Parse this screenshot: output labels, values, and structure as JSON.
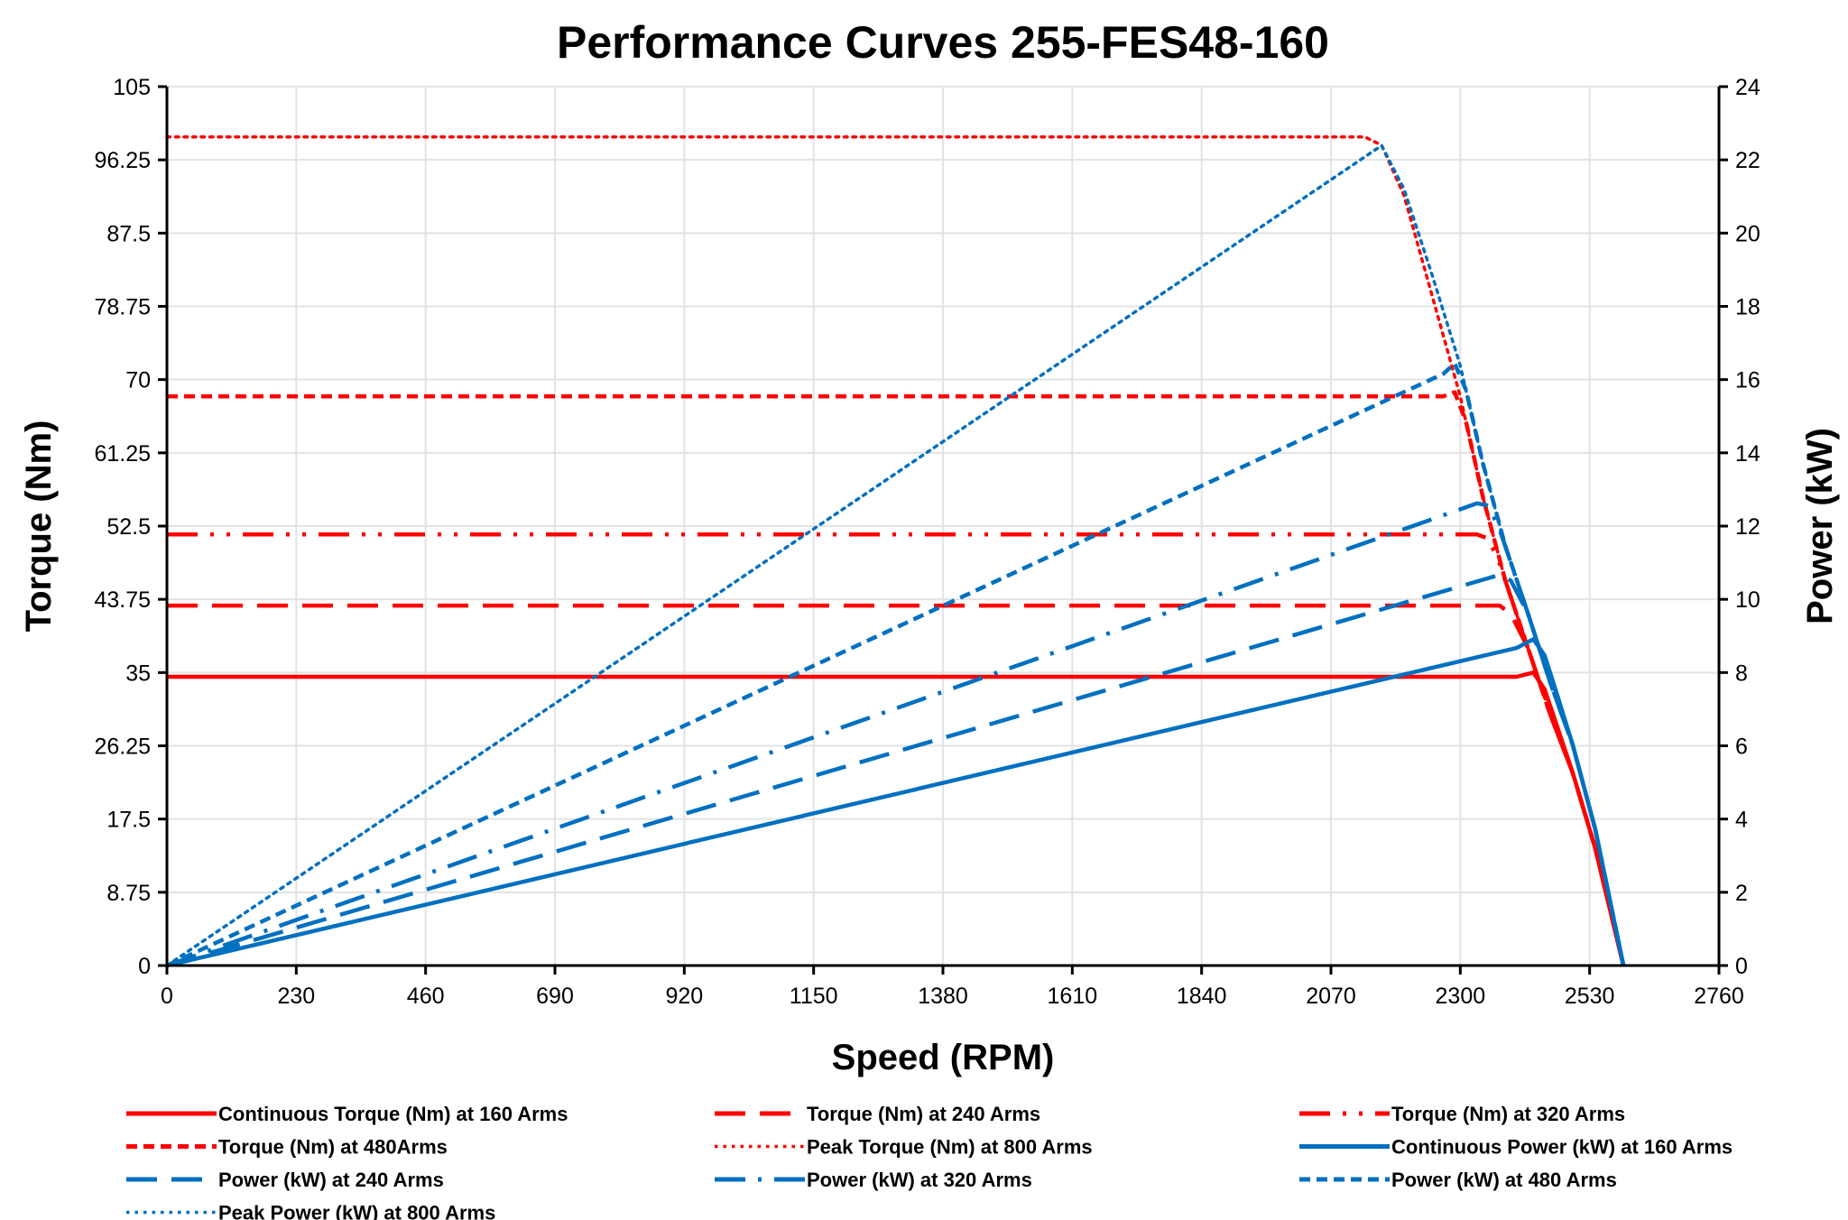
{
  "chart_data": {
    "type": "line",
    "title": "Performance Curves 255-FES48-160",
    "xlabel": "Speed (RPM)",
    "ylabel": "Torque (Nm)",
    "y2label": "Power (kW)",
    "xlim": [
      0,
      2760
    ],
    "ylim": [
      0,
      105
    ],
    "y2lim": [
      0,
      24
    ],
    "xticks": [
      "0",
      "230",
      "460",
      "690",
      "920",
      "1150",
      "1380",
      "1610",
      "1840",
      "2070",
      "2300",
      "2530",
      "2760"
    ],
    "yticks": [
      "0",
      "8.75",
      "17.5",
      "26.25",
      "35",
      "43.75",
      "52.5",
      "61.25",
      "70",
      "78.75",
      "87.5",
      "96.25",
      "105"
    ],
    "y2ticks": [
      "0",
      "2",
      "4",
      "6",
      "8",
      "10",
      "12",
      "14",
      "16",
      "18",
      "20",
      "22",
      "24"
    ],
    "grid": true,
    "legend_position": "bottom",
    "colors": {
      "torque": "#ff0000",
      "power": "#0070c0"
    },
    "series": [
      {
        "name": "Continuous Torque (Nm) at 160 Arms",
        "axis": "left",
        "color": "#ff0000",
        "style": "solid",
        "points": [
          [
            0,
            34.5
          ],
          [
            2400,
            34.5
          ],
          [
            2430,
            35
          ],
          [
            2450,
            33
          ],
          [
            2470,
            29
          ],
          [
            2500,
            23
          ],
          [
            2540,
            14
          ],
          [
            2590,
            0
          ]
        ]
      },
      {
        "name": "Torque (Nm) at 240 Arms",
        "axis": "left",
        "color": "#ff0000",
        "style": "long-dash",
        "points": [
          [
            0,
            43
          ],
          [
            2370,
            43
          ],
          [
            2390,
            42
          ],
          [
            2420,
            38
          ],
          [
            2460,
            30
          ],
          [
            2500,
            23
          ],
          [
            2540,
            14
          ],
          [
            2590,
            0
          ]
        ]
      },
      {
        "name": "Torque (Nm) at 320 Arms",
        "axis": "left",
        "color": "#ff0000",
        "style": "dash-dot-dot",
        "points": [
          [
            0,
            51.5
          ],
          [
            2330,
            51.5
          ],
          [
            2350,
            51
          ],
          [
            2370,
            48
          ],
          [
            2390,
            44
          ],
          [
            2420,
            38
          ],
          [
            2460,
            30
          ],
          [
            2500,
            23
          ],
          [
            2540,
            14
          ],
          [
            2590,
            0
          ]
        ]
      },
      {
        "name": "Torque (Nm) at 480Arms",
        "axis": "left",
        "color": "#ff0000",
        "style": "short-dash",
        "points": [
          [
            0,
            68
          ],
          [
            2270,
            68
          ],
          [
            2290,
            68.5
          ],
          [
            2310,
            65
          ],
          [
            2340,
            56
          ],
          [
            2380,
            46
          ],
          [
            2420,
            38
          ],
          [
            2460,
            30
          ],
          [
            2500,
            23
          ],
          [
            2540,
            14
          ],
          [
            2590,
            0
          ]
        ]
      },
      {
        "name": "Peak Torque (Nm) at 800  Arms",
        "axis": "left",
        "color": "#ff0000",
        "style": "dot",
        "points": [
          [
            0,
            99
          ],
          [
            2130,
            99
          ],
          [
            2160,
            98
          ],
          [
            2200,
            92
          ],
          [
            2250,
            80
          ],
          [
            2300,
            68
          ],
          [
            2340,
            56
          ],
          [
            2380,
            46
          ],
          [
            2420,
            38
          ],
          [
            2460,
            30
          ],
          [
            2500,
            23
          ],
          [
            2540,
            14
          ],
          [
            2590,
            0
          ]
        ]
      },
      {
        "name": "Continuous Power (kW) at 160 Arms",
        "axis": "right",
        "color": "#0070c0",
        "style": "solid",
        "points": [
          [
            0,
            0
          ],
          [
            2400,
            8.67
          ],
          [
            2430,
            8.91
          ],
          [
            2450,
            8.47
          ],
          [
            2470,
            7.5
          ],
          [
            2500,
            6.02
          ],
          [
            2540,
            3.72
          ],
          [
            2590,
            0
          ]
        ]
      },
      {
        "name": "Power (kW) at 240 Arms",
        "axis": "right",
        "color": "#0070c0",
        "style": "long-dash",
        "points": [
          [
            0,
            0
          ],
          [
            2370,
            10.67
          ],
          [
            2390,
            10.51
          ],
          [
            2420,
            9.63
          ],
          [
            2460,
            7.73
          ],
          [
            2500,
            6.02
          ],
          [
            2540,
            3.72
          ],
          [
            2590,
            0
          ]
        ]
      },
      {
        "name": "Power (kW) at 320 Arms",
        "axis": "right",
        "color": "#0070c0",
        "style": "dash-dot",
        "points": [
          [
            0,
            0
          ],
          [
            2330,
            12.62
          ],
          [
            2350,
            12.56
          ],
          [
            2370,
            11.9
          ],
          [
            2390,
            11.0
          ],
          [
            2420,
            9.63
          ],
          [
            2460,
            7.73
          ],
          [
            2500,
            6.02
          ],
          [
            2540,
            3.72
          ],
          [
            2590,
            0
          ]
        ]
      },
      {
        "name": "Power (kW) at 480 Arms",
        "axis": "right",
        "color": "#0070c0",
        "style": "short-dash",
        "points": [
          [
            0,
            0
          ],
          [
            2270,
            16.16
          ],
          [
            2290,
            16.44
          ],
          [
            2310,
            15.72
          ],
          [
            2340,
            13.72
          ],
          [
            2380,
            11.46
          ],
          [
            2420,
            9.63
          ],
          [
            2460,
            7.73
          ],
          [
            2500,
            6.02
          ],
          [
            2540,
            3.72
          ],
          [
            2590,
            0
          ]
        ]
      },
      {
        "name": "Peak Power (kW) at 800 Arms",
        "axis": "right",
        "color": "#0070c0",
        "style": "dot",
        "points": [
          [
            0,
            0
          ],
          [
            2130,
            22.08
          ],
          [
            2160,
            22.39
          ],
          [
            2200,
            21.2
          ],
          [
            2250,
            18.85
          ],
          [
            2300,
            16.38
          ],
          [
            2340,
            13.72
          ],
          [
            2380,
            11.46
          ],
          [
            2420,
            9.63
          ],
          [
            2460,
            7.73
          ],
          [
            2500,
            6.02
          ],
          [
            2540,
            3.72
          ],
          [
            2590,
            0
          ]
        ]
      }
    ]
  }
}
